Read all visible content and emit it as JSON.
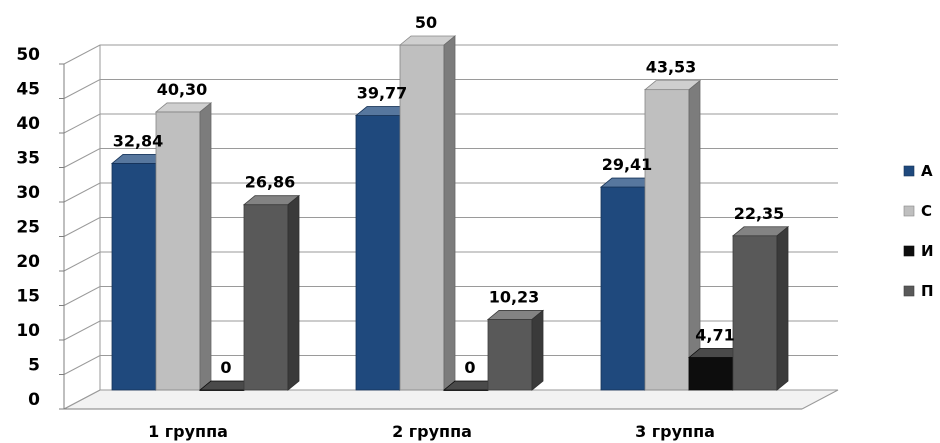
{
  "chart_data": {
    "type": "bar",
    "categories": [
      "1 группа",
      "2 группа",
      "3 группа"
    ],
    "series": [
      {
        "name": "А",
        "color": "#1F497D",
        "values": [
          32.84,
          39.77,
          29.41
        ],
        "labels": [
          "32,84",
          "39,77",
          "29,41"
        ]
      },
      {
        "name": "С",
        "color": "#BFBFBF",
        "values": [
          40.3,
          50,
          43.53
        ],
        "labels": [
          "40,30",
          "50",
          "43,53"
        ]
      },
      {
        "name": "И",
        "color": "#0D0D0D",
        "values": [
          0,
          0,
          4.71
        ],
        "labels": [
          "0",
          "0",
          "4,71"
        ]
      },
      {
        "name": "П",
        "color": "#595959",
        "values": [
          26.86,
          10.23,
          22.35
        ],
        "labels": [
          "26,86",
          "10,23",
          "22,35"
        ]
      }
    ],
    "yticks": [
      "0",
      "5",
      "10",
      "15",
      "20",
      "25",
      "30",
      "35",
      "40",
      "45",
      "50"
    ],
    "ylim": [
      0,
      50
    ],
    "grid": true,
    "legend_position": "right",
    "style": "3d-column"
  }
}
